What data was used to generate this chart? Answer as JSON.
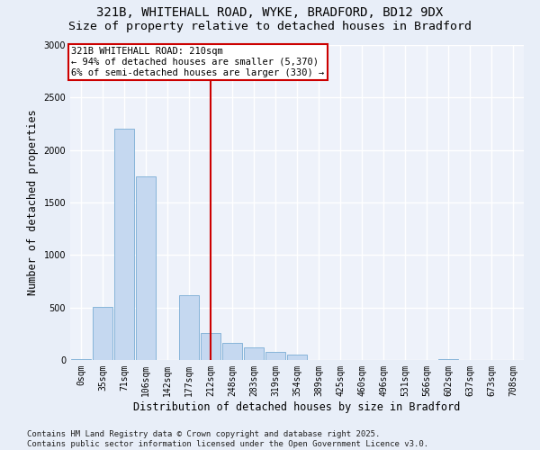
{
  "title_line1": "321B, WHITEHALL ROAD, WYKE, BRADFORD, BD12 9DX",
  "title_line2": "Size of property relative to detached houses in Bradford",
  "xlabel": "Distribution of detached houses by size in Bradford",
  "ylabel": "Number of detached properties",
  "categories": [
    "0sqm",
    "35sqm",
    "71sqm",
    "106sqm",
    "142sqm",
    "177sqm",
    "212sqm",
    "248sqm",
    "283sqm",
    "319sqm",
    "354sqm",
    "389sqm",
    "425sqm",
    "460sqm",
    "496sqm",
    "531sqm",
    "566sqm",
    "602sqm",
    "637sqm",
    "673sqm",
    "708sqm"
  ],
  "bar_values": [
    10,
    510,
    2200,
    1750,
    0,
    620,
    260,
    160,
    120,
    80,
    50,
    0,
    0,
    0,
    0,
    0,
    0,
    10,
    0,
    0,
    0
  ],
  "bar_color": "#c5d8f0",
  "bar_edge_color": "#7aadd4",
  "vline_x": 6,
  "vline_color": "#cc0000",
  "annotation_text": "321B WHITEHALL ROAD: 210sqm\n← 94% of detached houses are smaller (5,370)\n6% of semi-detached houses are larger (330) →",
  "annotation_box_edgecolor": "#cc0000",
  "annotation_text_color": "#000000",
  "ylim": [
    0,
    3000
  ],
  "yticks": [
    0,
    500,
    1000,
    1500,
    2000,
    2500,
    3000
  ],
  "bg_color": "#e8eef8",
  "plot_bg_color": "#eef2fa",
  "footer_line1": "Contains HM Land Registry data © Crown copyright and database right 2025.",
  "footer_line2": "Contains public sector information licensed under the Open Government Licence v3.0.",
  "title_fontsize": 10,
  "subtitle_fontsize": 9.5,
  "axis_label_fontsize": 8.5,
  "tick_fontsize": 7,
  "annotation_fontsize": 7.5,
  "footer_fontsize": 6.5,
  "grid_color": "#ffffff",
  "grid_linewidth": 1.0
}
